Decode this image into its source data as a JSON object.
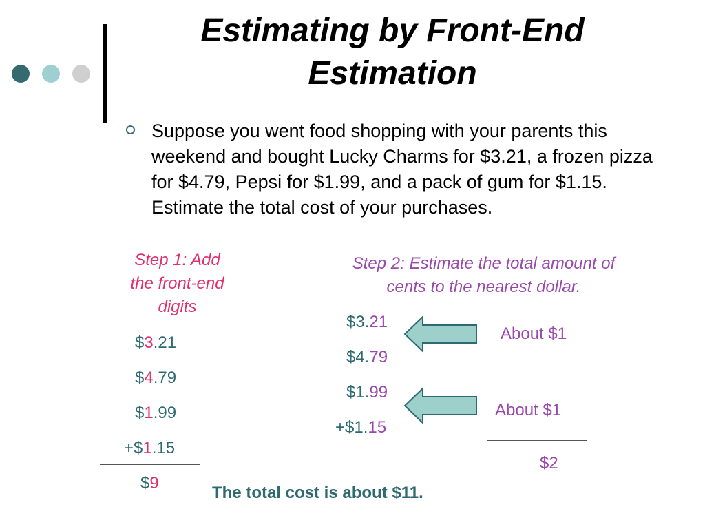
{
  "slide": {
    "title_line1": "Estimating by Front-End",
    "title_line2": "Estimation",
    "bullet": "Suppose you went food shopping with your parents this weekend and bought Lucky Charms for $3.21, a frozen pizza for $4.79, Pepsi for $1.99, and a pack of gum for $1.15. Estimate the total cost of your purchases."
  },
  "step1": {
    "label_lines": [
      "Step 1: Add",
      "the front-end",
      "digits"
    ],
    "rows": [
      {
        "prefix": "$",
        "front": "3",
        "rest": ".21"
      },
      {
        "prefix": "$",
        "front": "4",
        "rest": ".79"
      },
      {
        "prefix": "$",
        "front": "1",
        "rest": ".99"
      },
      {
        "prefix": "+$",
        "front": "1",
        "rest": ".15"
      }
    ],
    "total_prefix": "$",
    "total_value": "9"
  },
  "step2": {
    "label_lines": [
      "Step 2: Estimate the total amount of",
      "cents to the nearest dollar."
    ],
    "rows": [
      {
        "dollars": "$3.",
        "cents": "21"
      },
      {
        "dollars": "$4.",
        "cents": "79"
      },
      {
        "dollars": "$1.",
        "cents": "99"
      },
      {
        "dollars": "+$1.",
        "cents": "15"
      }
    ],
    "about_1": "About $1",
    "about_2": "About $1",
    "total": "$2"
  },
  "conclusion": "The total cost is about $11.",
  "colors": {
    "teal": "#2e6a72",
    "pink": "#e0306a",
    "purple": "#9b48ad",
    "arrow_fill": "#9dcfcb",
    "dot_dark": "#356a6e",
    "dot_mid": "#9fd0d1",
    "dot_light": "#cfcfcf"
  }
}
